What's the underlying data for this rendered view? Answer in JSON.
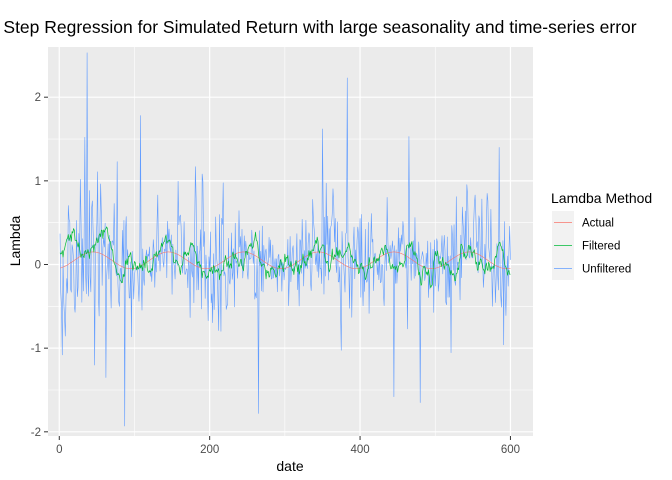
{
  "chart_data": {
    "type": "line",
    "title": "Step Regression for Simulated Return with large seasonality and time-series error",
    "xlabel": "date",
    "ylabel": "Lambda",
    "xlim": [
      -15,
      630
    ],
    "ylim": [
      -2.05,
      2.6
    ],
    "x_ticks": [
      0,
      200,
      400,
      600
    ],
    "y_ticks": [
      -2,
      -1,
      0,
      1,
      2
    ],
    "grid": true,
    "legend": {
      "title": "Lamdba Method",
      "placement": "right"
    },
    "n_points": 600,
    "series": [
      {
        "name": "Actual",
        "color": "#F8766D",
        "description_values": {
          "mean": 0.05,
          "amplitude": 0.1,
          "period": 100,
          "range": [
            -0.06,
            0.17
          ]
        }
      },
      {
        "name": "Filtered",
        "color": "#00BA38",
        "description_values": {
          "range": [
            -0.3,
            0.6
          ]
        }
      },
      {
        "name": "Unfiltered",
        "color": "#619CFF",
        "description_values": {
          "range": [
            -1.93,
            2.53
          ]
        }
      }
    ],
    "notable_points": [
      {
        "series": "Unfiltered",
        "x": 37,
        "y": 2.53
      },
      {
        "series": "Unfiltered",
        "x": 34,
        "y": 1.52
      },
      {
        "series": "Unfiltered",
        "x": 108,
        "y": 1.78
      },
      {
        "series": "Unfiltered",
        "x": 383,
        "y": 2.23
      },
      {
        "series": "Unfiltered",
        "x": 350,
        "y": 1.62
      },
      {
        "series": "Unfiltered",
        "x": 465,
        "y": 1.53
      },
      {
        "series": "Unfiltered",
        "x": 585,
        "y": 1.4
      },
      {
        "series": "Unfiltered",
        "x": 87,
        "y": -1.93
      },
      {
        "series": "Unfiltered",
        "x": 265,
        "y": -1.78
      },
      {
        "series": "Unfiltered",
        "x": 445,
        "y": -1.58
      },
      {
        "series": "Unfiltered",
        "x": 480,
        "y": -1.65
      },
      {
        "series": "Unfiltered",
        "x": 4,
        "y": -1.08
      },
      {
        "series": "Unfiltered",
        "x": 62,
        "y": -1.35
      }
    ]
  }
}
